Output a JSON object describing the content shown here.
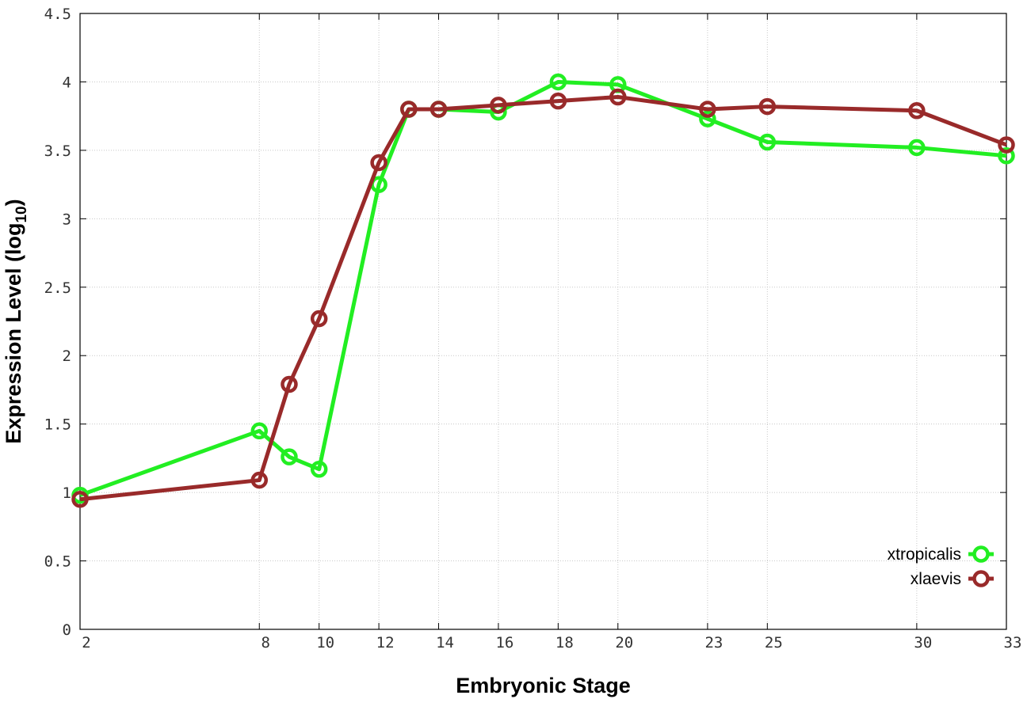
{
  "chart_data": {
    "type": "line",
    "title": "",
    "xlabel": "Embryonic Stage",
    "ylabel_main": "Expression Level (log",
    "ylabel_sub": "10",
    "ylabel_close": ")",
    "x_ticks": [
      2,
      8,
      10,
      12,
      14,
      16,
      18,
      20,
      23,
      25,
      30,
      33
    ],
    "y_ticks": [
      "0",
      "0.5",
      "1",
      "1.5",
      "2",
      "2.5",
      "3",
      "3.5",
      "4",
      "4.5"
    ],
    "xlim": [
      2,
      33
    ],
    "ylim": [
      0,
      4.5
    ],
    "grid": true,
    "legend_position": "bottom-right",
    "series": [
      {
        "name": "xtropicalis",
        "color": "#22ee22",
        "x": [
          2,
          8,
          9,
          10,
          12,
          13,
          14,
          16,
          18,
          20,
          23,
          25,
          30,
          33
        ],
        "y": [
          0.98,
          1.45,
          1.26,
          1.17,
          3.25,
          3.8,
          3.8,
          3.78,
          4.0,
          3.98,
          3.73,
          3.56,
          3.52,
          3.46
        ]
      },
      {
        "name": "xlaevis",
        "color": "#992a2a",
        "x": [
          2,
          8,
          9,
          10,
          12,
          13,
          14,
          16,
          18,
          20,
          23,
          25,
          30,
          33
        ],
        "y": [
          0.95,
          1.09,
          1.79,
          2.27,
          3.41,
          3.8,
          3.8,
          3.83,
          3.86,
          3.89,
          3.8,
          3.82,
          3.79,
          3.54
        ]
      }
    ]
  }
}
